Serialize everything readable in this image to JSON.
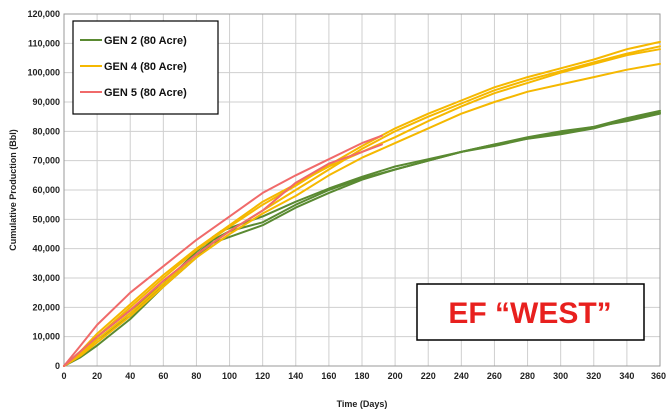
{
  "chart_data": {
    "type": "line",
    "title": "",
    "xlabel": "Time (Days)",
    "ylabel": "Cumulative Production (Bbl)",
    "xlim": [
      0,
      360
    ],
    "ylim": [
      0,
      120000
    ],
    "x_ticks": [
      "0",
      "20",
      "40",
      "60",
      "80",
      "100",
      "120",
      "140",
      "160",
      "180",
      "200",
      "220",
      "240",
      "260",
      "280",
      "300",
      "320",
      "340",
      "360"
    ],
    "y_ticks": [
      "0",
      "10,000",
      "20,000",
      "30,000",
      "40,000",
      "50,000",
      "60,000",
      "70,000",
      "80,000",
      "90,000",
      "100,000",
      "110,000",
      "120,000"
    ],
    "grid": true,
    "legend_position": "top-left",
    "legend": [
      {
        "label": "GEN 2  (80 Acre)",
        "color": "#5a8a32"
      },
      {
        "label": "GEN 4  (80 Acre)",
        "color": "#f5b800"
      },
      {
        "label": "GEN 5  (80 Acre)",
        "color": "#f06a6a"
      }
    ],
    "annotation": "EF “WEST”",
    "annotation_color": "#e8201e",
    "series": [
      {
        "group": "GEN 2",
        "color": "#5a8a32",
        "x": [
          0,
          10,
          20,
          40,
          60,
          80,
          90,
          100,
          120,
          140,
          160,
          180,
          200,
          220,
          240,
          260,
          280,
          300,
          320,
          340,
          360
        ],
        "y": [
          0,
          3000,
          7000,
          16000,
          27000,
          37000,
          42000,
          44000,
          48000,
          54000,
          59000,
          63500,
          67000,
          70000,
          73000,
          75500,
          78000,
          80000,
          81500,
          83500,
          86000
        ]
      },
      {
        "group": "GEN 2",
        "color": "#5a8a32",
        "x": [
          0,
          10,
          20,
          40,
          60,
          80,
          90,
          100,
          120,
          140,
          160,
          180,
          200,
          220,
          240,
          260,
          280,
          300,
          320,
          340,
          360
        ],
        "y": [
          0,
          5000,
          10000,
          19000,
          28000,
          38000,
          43000,
          46000,
          49000,
          55000,
          60000,
          64000,
          67000,
          70000,
          73000,
          75500,
          77500,
          79500,
          81500,
          84500,
          87000
        ]
      },
      {
        "group": "GEN 2",
        "color": "#5a8a32",
        "x": [
          0,
          10,
          20,
          40,
          60,
          80,
          90,
          95,
          100,
          120,
          140,
          160,
          180,
          200,
          220,
          240,
          260,
          280,
          300,
          320,
          340,
          360
        ],
        "y": [
          0,
          4000,
          9000,
          17000,
          28000,
          39000,
          44000,
          46000,
          47000,
          51000,
          56000,
          60500,
          64500,
          68000,
          70500,
          73000,
          75000,
          77500,
          79000,
          81000,
          84000,
          86500
        ]
      },
      {
        "group": "GEN 4",
        "color": "#f5b800",
        "x": [
          0,
          10,
          20,
          40,
          60,
          80,
          100,
          120,
          140,
          160,
          180,
          200,
          220,
          240,
          260,
          280,
          300,
          320,
          340,
          360
        ],
        "y": [
          0,
          3500,
          8000,
          17000,
          27000,
          37000,
          45000,
          52000,
          58000,
          65000,
          71000,
          76000,
          81000,
          86000,
          90000,
          93500,
          96000,
          98500,
          101000,
          103000
        ]
      },
      {
        "group": "GEN 4",
        "color": "#f5b800",
        "x": [
          0,
          10,
          20,
          40,
          60,
          80,
          100,
          120,
          140,
          160,
          180,
          200,
          220,
          240,
          260,
          280,
          300,
          320,
          340,
          360
        ],
        "y": [
          0,
          4000,
          9000,
          18000,
          28000,
          38000,
          46000,
          53000,
          60000,
          67000,
          74000,
          80000,
          85000,
          89500,
          94000,
          97500,
          100500,
          103500,
          106500,
          109000
        ]
      },
      {
        "group": "GEN 4",
        "color": "#f5b800",
        "x": [
          0,
          10,
          20,
          40,
          60,
          80,
          100,
          120,
          140,
          160,
          180,
          200,
          220,
          240,
          260,
          280,
          300,
          320,
          340,
          360
        ],
        "y": [
          0,
          5000,
          11000,
          21000,
          31000,
          40000,
          48000,
          56000,
          62000,
          68000,
          73000,
          78000,
          83500,
          88500,
          93000,
          96500,
          100000,
          103000,
          106000,
          108000
        ]
      },
      {
        "group": "GEN 4",
        "color": "#f5b800",
        "x": [
          0,
          10,
          20,
          40,
          60,
          80,
          100,
          120,
          140,
          160,
          180,
          200,
          220,
          240,
          260,
          280,
          300,
          320,
          340,
          360
        ],
        "y": [
          0,
          4500,
          10000,
          20000,
          30000,
          39500,
          47500,
          55000,
          61500,
          68500,
          75000,
          81000,
          86000,
          90500,
          95000,
          98500,
          101500,
          104500,
          108000,
          110500
        ]
      },
      {
        "group": "GEN 5",
        "color": "#f06a6a",
        "x": [
          0,
          10,
          20,
          40,
          60,
          80,
          100,
          120,
          140,
          160,
          180,
          192
        ],
        "y": [
          0,
          7000,
          14000,
          25000,
          34000,
          43000,
          51000,
          59000,
          65000,
          70500,
          76000,
          78500
        ]
      },
      {
        "group": "GEN 5",
        "color": "#f06a6a",
        "x": [
          0,
          10,
          20,
          40,
          60,
          80,
          100,
          120,
          140,
          160,
          180,
          192
        ],
        "y": [
          0,
          5000,
          10000,
          19000,
          29000,
          38000,
          46000,
          53000,
          62500,
          69000,
          73000,
          75500
        ]
      }
    ]
  }
}
